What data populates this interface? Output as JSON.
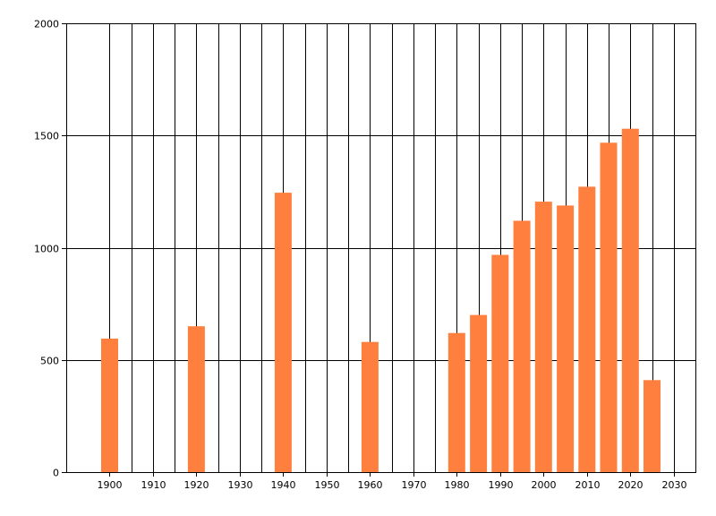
{
  "chart_data": {
    "type": "bar",
    "title": "",
    "xlabel": "",
    "ylabel": "",
    "x": [
      1900,
      1920,
      1940,
      1960,
      1980,
      1985,
      1990,
      1995,
      2000,
      2005,
      2010,
      2015,
      2020,
      2025
    ],
    "values": [
      595,
      650,
      1245,
      580,
      620,
      700,
      968,
      1120,
      1205,
      1188,
      1272,
      1468,
      1530,
      410
    ],
    "xlim": [
      1890,
      2035
    ],
    "ylim": [
      0,
      2000
    ],
    "x_ticks": [
      1900,
      1910,
      1920,
      1930,
      1940,
      1950,
      1960,
      1970,
      1980,
      1990,
      2000,
      2010,
      2020,
      2030
    ],
    "x_tick_labels": [
      "1900",
      "1910",
      "1920",
      "1930",
      "1940",
      "1950",
      "1960",
      "1970",
      "1980",
      "1990",
      "2000",
      "2010",
      "2020",
      "2030"
    ],
    "y_ticks": [
      0,
      500,
      1000,
      1500,
      2000
    ],
    "y_tick_labels": [
      "0",
      "500",
      "1000",
      "1500",
      "2000"
    ],
    "grid": true,
    "legend": "none",
    "bar_color": "#ff7f3f"
  }
}
